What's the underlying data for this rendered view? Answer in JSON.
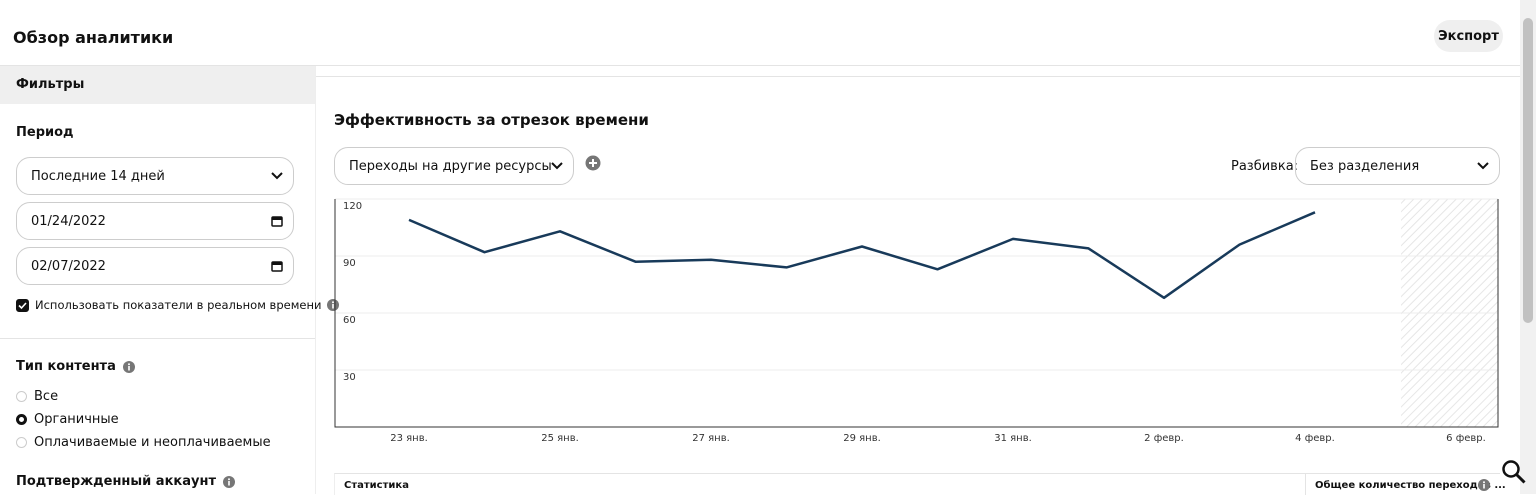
{
  "header": {
    "title": "Обзор аналитики",
    "export": "Экспорт"
  },
  "sidebar": {
    "heading": "Фильтры",
    "period": {
      "label": "Период",
      "range": "Последние 14 дней",
      "start": "01/24/2022",
      "end": "02/07/2022",
      "realtime": "Использовать показатели в реальном времени",
      "realtime_checked": true
    },
    "content_type": {
      "label": "Тип контента",
      "options": [
        "Все",
        "Органичные",
        "Оплачиваемые и неоплачиваемые"
      ],
      "selected": 1
    },
    "verified": {
      "label": "Подтвержденный аккаунт"
    }
  },
  "main": {
    "title": "Эффективность за отрезок времени",
    "metric": "Переходы на другие ресурсы",
    "breakdown_label": "Разбивка:",
    "breakdown": "Без разделения",
    "table_headers": [
      "Статистика",
      "Общее количество переходов ..."
    ]
  },
  "chart_data": {
    "type": "line",
    "categories": [
      "23 янв.",
      null,
      "25 янв.",
      null,
      "27 янв.",
      null,
      "29 янв.",
      null,
      "31 янв.",
      null,
      "2 февр.",
      null,
      "4 февр.",
      null,
      "6 февр."
    ],
    "values": [
      109,
      92,
      103,
      87,
      88,
      84,
      95,
      83,
      99,
      94,
      68,
      96,
      113,
      null,
      null
    ],
    "color": "#183a5a",
    "ylim": [
      0,
      120
    ],
    "yticks": [
      30,
      60,
      90,
      120
    ],
    "grid": true
  }
}
